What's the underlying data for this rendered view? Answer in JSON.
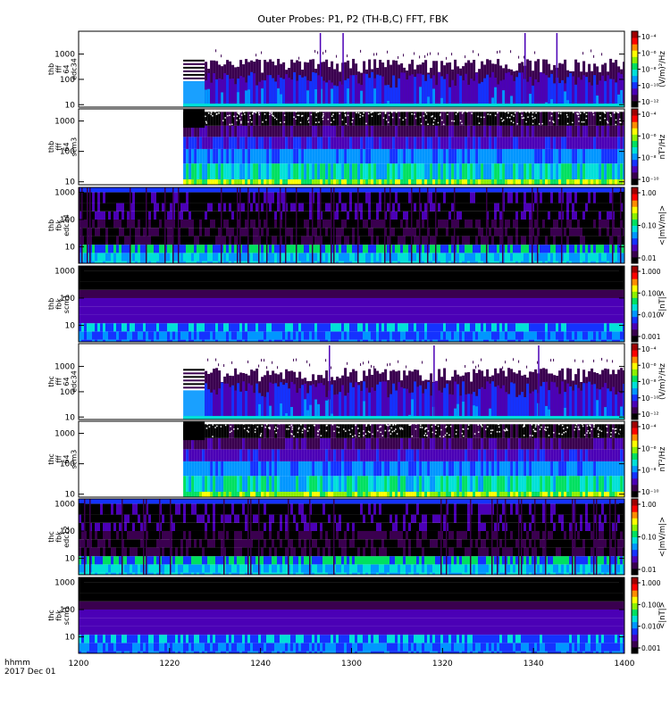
{
  "chart_data": {
    "type": "heatmap",
    "title": "Outer Probes: P1, P2 (TH-B,C) FFT, FBK",
    "x_ticks": [
      "1200",
      "1220",
      "1240",
      "1300",
      "1320",
      "1340",
      "1400"
    ],
    "x_range_hhmm": [
      "1200",
      "1400"
    ],
    "x_label_lines": [
      "hhmm",
      "2017 Dec 01"
    ],
    "data_start_hhmm": "1223",
    "colormap": [
      "#000000",
      "#3a004f",
      "#4b00b6",
      "#1432ff",
      "#0096ff",
      "#00e0d8",
      "#00e060",
      "#8cf000",
      "#ffff00",
      "#ff8c00",
      "#ff0000",
      "#a00000"
    ],
    "panels": [
      {
        "ylabel_lines": [
          "thb",
          "fff",
          "64",
          "edc34"
        ],
        "y_scale": "log",
        "y_range": [
          8,
          8000
        ],
        "y_ticks": [
          "10",
          "100",
          "1000"
        ],
        "colorbar_label": "(V/m)²/Hz",
        "colorbar_ticks": [
          "10⁻¹²",
          "10⁻¹⁰",
          "10⁻⁸",
          "10⁻⁶",
          "10⁻⁴"
        ],
        "kind": "fft_e",
        "data_start": "1223",
        "top_freq": 300,
        "spike_times": [
          "1253",
          "1258",
          "1338",
          "1345"
        ]
      },
      {
        "ylabel_lines": [
          "thb",
          "fff",
          "64",
          "scm3"
        ],
        "y_scale": "log",
        "y_range": [
          8,
          2500
        ],
        "y_ticks": [
          "10",
          "100",
          "1000"
        ],
        "colorbar_label": "nT²/Hz",
        "colorbar_ticks": [
          "10⁻¹⁰",
          "10⁻⁸",
          "10⁻⁶",
          "10⁻⁴"
        ],
        "kind": "fft_b",
        "data_start": "1223",
        "band_freqs": [
          10,
          30,
          80,
          250,
          600,
          1500
        ]
      },
      {
        "ylabel_lines": [
          "thb",
          "fbk",
          "edc34"
        ],
        "y_scale": "log",
        "y_range": [
          2.5,
          1500
        ],
        "y_ticks": [
          "10",
          "100",
          "1000"
        ],
        "colorbar_label": "<|mV/m|>",
        "colorbar_ticks": [
          "0.01",
          "0.10",
          "1.00"
        ],
        "kind": "fbk_e",
        "data_start": "1200",
        "band_freqs": [
          3,
          6,
          12,
          25,
          50,
          100,
          200,
          400,
          1000
        ]
      },
      {
        "ylabel_lines": [
          "thb",
          "fbk",
          "scm1"
        ],
        "y_scale": "log",
        "y_range": [
          2.5,
          1500
        ],
        "y_ticks": [
          "10",
          "100",
          "1000"
        ],
        "colorbar_label": "<|nT|>",
        "colorbar_ticks": [
          "0.001",
          "0.010",
          "0.100",
          "1.000"
        ],
        "kind": "fbk_b",
        "data_start": "1200",
        "band_freqs": [
          3,
          6,
          12,
          25,
          50,
          100,
          200,
          400,
          1000
        ]
      },
      {
        "ylabel_lines": [
          "thc",
          "fff",
          "64",
          "edc34"
        ],
        "y_scale": "log",
        "y_range": [
          8,
          8000
        ],
        "y_ticks": [
          "10",
          "100",
          "1000"
        ],
        "colorbar_label": "(V/m)²/Hz",
        "colorbar_ticks": [
          "10⁻¹²",
          "10⁻¹⁰",
          "10⁻⁸",
          "10⁻⁶",
          "10⁻⁴"
        ],
        "kind": "fft_e",
        "data_start": "1223",
        "top_freq": 400,
        "spike_times": [
          "1255",
          "1318",
          "1341"
        ]
      },
      {
        "ylabel_lines": [
          "thc",
          "fff",
          "64",
          "scm3"
        ],
        "y_scale": "log",
        "y_range": [
          8,
          2500
        ],
        "y_ticks": [
          "10",
          "100",
          "1000"
        ],
        "colorbar_label": "nT²/Hz",
        "colorbar_ticks": [
          "10⁻¹⁰",
          "10⁻⁸",
          "10⁻⁶",
          "10⁻⁴"
        ],
        "kind": "fft_b",
        "data_start": "1223",
        "band_freqs": [
          10,
          30,
          80,
          250,
          600,
          1500
        ]
      },
      {
        "ylabel_lines": [
          "thc",
          "fbk",
          "edc12"
        ],
        "y_scale": "log",
        "y_range": [
          2.5,
          1500
        ],
        "y_ticks": [
          "10",
          "100",
          "1000"
        ],
        "colorbar_label": "<|mV/m|>",
        "colorbar_ticks": [
          "0.01",
          "0.10",
          "1.00"
        ],
        "kind": "fbk_e",
        "data_start": "1200",
        "band_freqs": [
          3,
          6,
          12,
          25,
          50,
          100,
          200,
          400,
          1000
        ]
      },
      {
        "ylabel_lines": [
          "thc",
          "fbk",
          "scm1"
        ],
        "y_scale": "log",
        "y_range": [
          2.5,
          1500
        ],
        "y_ticks": [
          "10",
          "100",
          "1000"
        ],
        "colorbar_label": "<|nT|>",
        "colorbar_ticks": [
          "0.001",
          "0.010",
          "0.100",
          "1.000"
        ],
        "kind": "fbk_b",
        "data_start": "1200",
        "band_freqs": [
          3,
          6,
          12,
          25,
          50,
          100,
          200,
          400,
          1000
        ]
      }
    ]
  }
}
